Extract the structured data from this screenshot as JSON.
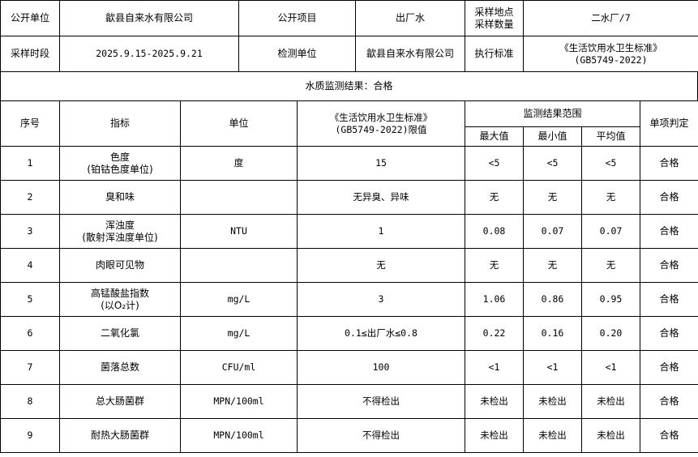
{
  "info": {
    "row1": {
      "label1": "公开单位",
      "value1": "歙县自来水有限公司",
      "label2": "公开项目",
      "value2": "出厂水",
      "label3": "采样地点\n采样数量",
      "value3": "二水厂/7"
    },
    "row2": {
      "label1": "采样时段",
      "value1": "2025.9.15-2025.9.21",
      "label2": "检测单位",
      "value2": "歙县自来水有限公司",
      "label3": "执行标准",
      "value3": "《生活饮用水卫生标准》\n(GB5749-2022)"
    }
  },
  "result_line": "水质监测结果：合格",
  "headers": {
    "seq": "序号",
    "indicator": "指标",
    "unit": "单位",
    "limit": "《生活饮用水卫生标准》\n(GB5749-2022)限值",
    "range": "监测结果范围",
    "max": "最大值",
    "min": "最小值",
    "avg": "平均值",
    "judge": "单项判定"
  },
  "rows": [
    {
      "seq": "1",
      "indicator": "色度\n(铂钴色度单位)",
      "unit": "度",
      "limit": "15",
      "max": "<5",
      "min": "<5",
      "avg": "<5",
      "judge": "合格"
    },
    {
      "seq": "2",
      "indicator": "臭和味",
      "unit": "",
      "limit": "无异臭、异味",
      "max": "无",
      "min": "无",
      "avg": "无",
      "judge": "合格"
    },
    {
      "seq": "3",
      "indicator": "浑浊度\n(散射浑浊度单位)",
      "unit": "NTU",
      "limit": "1",
      "max": "0.08",
      "min": "0.07",
      "avg": "0.07",
      "judge": "合格"
    },
    {
      "seq": "4",
      "indicator": "肉眼可见物",
      "unit": "",
      "limit": "无",
      "max": "无",
      "min": "无",
      "avg": "无",
      "judge": "合格"
    },
    {
      "seq": "5",
      "indicator": "高锰酸盐指数\n(以O₂计)",
      "unit": "mg/L",
      "limit": "3",
      "max": "1.06",
      "min": "0.86",
      "avg": "0.95",
      "judge": "合格"
    },
    {
      "seq": "6",
      "indicator": "二氧化氯",
      "unit": "mg/L",
      "limit": "0.1≤出厂水≤0.8",
      "max": "0.22",
      "min": "0.16",
      "avg": "0.20",
      "judge": "合格"
    },
    {
      "seq": "7",
      "indicator": "菌落总数",
      "unit": "CFU/ml",
      "limit": "100",
      "max": "<1",
      "min": "<1",
      "avg": "<1",
      "judge": "合格"
    },
    {
      "seq": "8",
      "indicator": "总大肠菌群",
      "unit": "MPN/100ml",
      "limit": "不得检出",
      "max": "未检出",
      "min": "未检出",
      "avg": "未检出",
      "judge": "合格"
    },
    {
      "seq": "9",
      "indicator": "耐热大肠菌群",
      "unit": "MPN/100ml",
      "limit": "不得检出",
      "max": "未检出",
      "min": "未检出",
      "avg": "未检出",
      "judge": "合格"
    }
  ]
}
